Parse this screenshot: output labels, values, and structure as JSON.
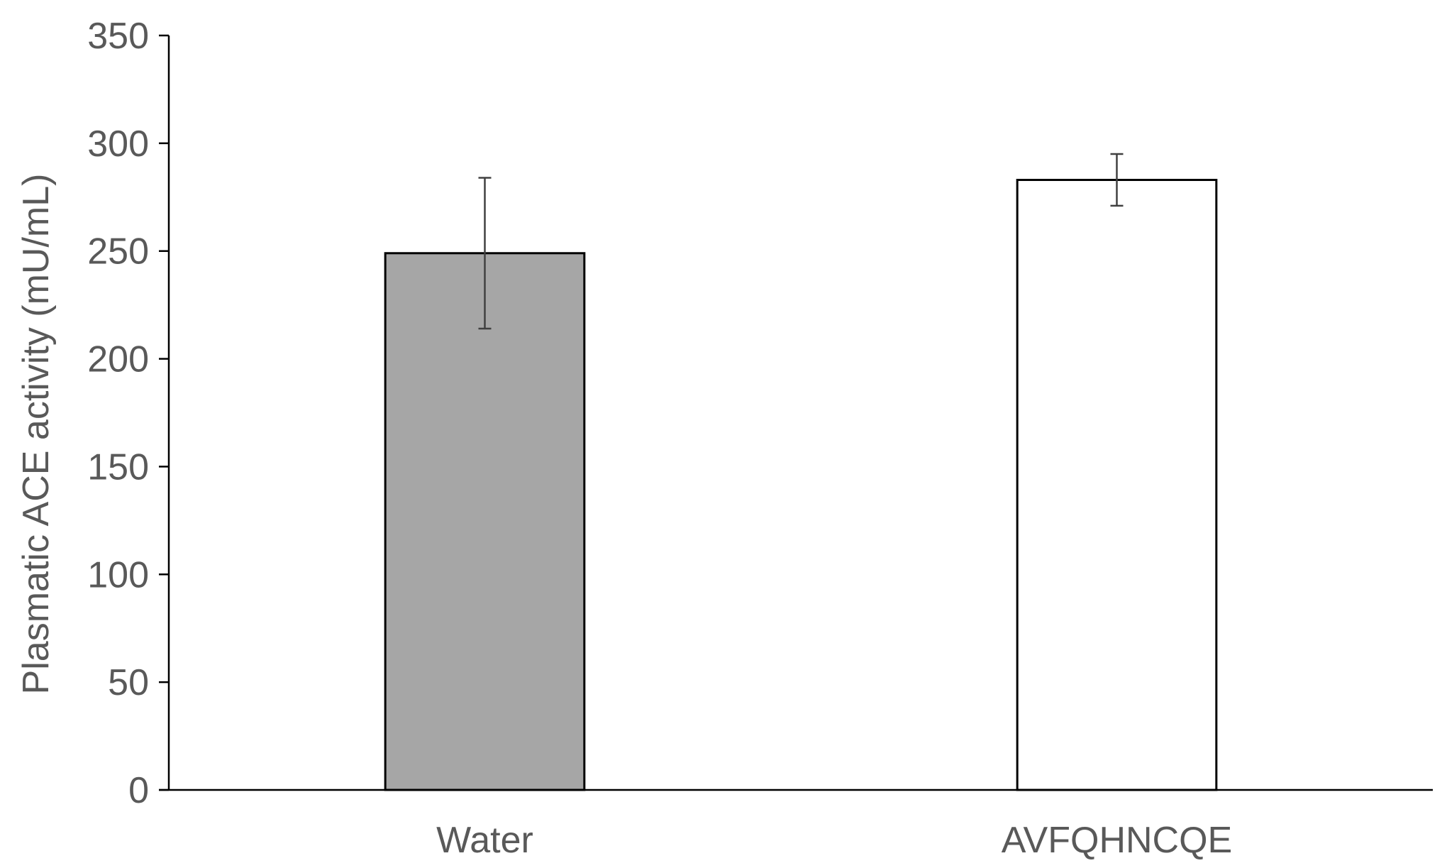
{
  "chart_data": {
    "type": "bar",
    "title": "",
    "xlabel": "",
    "ylabel": "Plasmatic ACE activity (mU/mL)",
    "categories": [
      "Water",
      "AVFQHNCQE"
    ],
    "values": [
      249,
      283
    ],
    "errors": [
      35,
      12
    ],
    "bar_colors": [
      "#a6a6a6",
      "#ffffff"
    ],
    "bar_edge_color": "#000000",
    "error_bar_color": "#404040",
    "ylim": [
      0,
      350
    ],
    "yticks": [
      0,
      50,
      100,
      150,
      200,
      250,
      300,
      350
    ],
    "ytick_labels": [
      "0",
      "50",
      "100",
      "150",
      "200",
      "250",
      "300",
      "350"
    ],
    "grid": false,
    "legend": "none"
  }
}
